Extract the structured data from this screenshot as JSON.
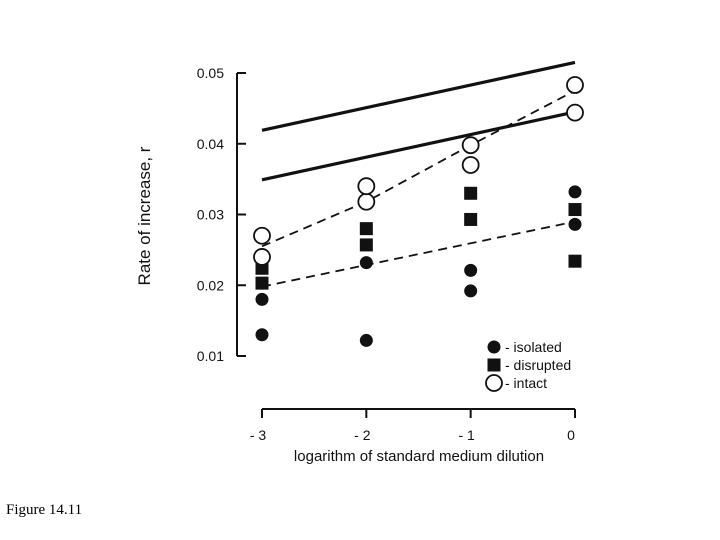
{
  "figure_label": "Figure 14.11",
  "chart_data": {
    "type": "scatter",
    "ylabel": "Rate of increase, r",
    "xlabel": "logarithm of standard medium dilution",
    "xlim": [
      -3,
      0
    ],
    "ylim": [
      0.01,
      0.05
    ],
    "xticks": [
      -3,
      -2,
      -1,
      0
    ],
    "xtick_labels": [
      "- 3",
      "- 2",
      "- 1",
      "0"
    ],
    "yticks": [
      0.01,
      0.02,
      0.03,
      0.04,
      0.05
    ],
    "ytick_labels": [
      "0.01",
      "0.02",
      "0.03",
      "0.04",
      "0.05"
    ],
    "grid": false,
    "legend_position": "bottom-right",
    "series": [
      {
        "name": "- isolated",
        "marker": "filled-circle",
        "points": [
          [
            -3,
            0.013
          ],
          [
            -3,
            0.018
          ],
          [
            -2,
            0.0122
          ],
          [
            -2,
            0.0232
          ],
          [
            -1,
            0.0192
          ],
          [
            -1,
            0.0221
          ],
          [
            0,
            0.0286
          ],
          [
            0,
            0.0332
          ]
        ]
      },
      {
        "name": "- disrupted",
        "marker": "filled-square",
        "points": [
          [
            -3,
            0.0203
          ],
          [
            -3,
            0.0224
          ],
          [
            -2,
            0.0257
          ],
          [
            -2,
            0.028
          ],
          [
            -1,
            0.0293
          ],
          [
            -1,
            0.033
          ],
          [
            0,
            0.0234
          ],
          [
            0,
            0.0307
          ]
        ]
      },
      {
        "name": "- intact",
        "marker": "open-circle",
        "points": [
          [
            -3,
            0.024
          ],
          [
            -3,
            0.027
          ],
          [
            -2,
            0.0318
          ],
          [
            -2,
            0.034
          ],
          [
            -1,
            0.037
          ],
          [
            -1,
            0.0398
          ],
          [
            0,
            0.0444
          ],
          [
            0,
            0.0483
          ]
        ]
      }
    ],
    "lines": [
      {
        "style": "solid",
        "points": [
          [
            -3,
            0.0419
          ],
          [
            0,
            0.0515
          ]
        ]
      },
      {
        "style": "solid",
        "points": [
          [
            -3,
            0.0349
          ],
          [
            0,
            0.0445
          ]
        ]
      },
      {
        "style": "dashed",
        "points": [
          [
            -3,
            0.0255
          ],
          [
            -2,
            0.0318
          ],
          [
            -1,
            0.0398
          ],
          [
            0,
            0.0475
          ]
        ]
      },
      {
        "style": "dashed",
        "points": [
          [
            -3,
            0.0198
          ],
          [
            0,
            0.029
          ]
        ]
      }
    ]
  }
}
